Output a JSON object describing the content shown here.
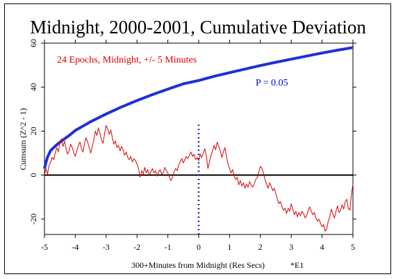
{
  "chart_data": {
    "type": "line",
    "title": "Midnight, 2000-2001, Cumulative Deviation",
    "xlabel": "300+Minutes from Midnight (Res Secs)",
    "ylabel": "Cumsum (Z^2 - 1)",
    "footnote": "*E1",
    "legend_text": "24 Epochs, Midnight, +/- 5 Minutes",
    "p_label": "P = 0.05",
    "xlim": [
      -5,
      5
    ],
    "ylim": [
      -27,
      60
    ],
    "x_ticks": [
      -5,
      -4,
      -3,
      -2,
      -1,
      0,
      1,
      2,
      3,
      4,
      5
    ],
    "y_ticks": [
      -20,
      0,
      20,
      40,
      60
    ],
    "grid": false,
    "colors": {
      "cumsum": "#dd0000",
      "envelope": "#1f2fd6",
      "midnight_marker": "#1f2fd6",
      "zero_line": "#000000",
      "legend_text": "#dd0000",
      "p_label": "#0000cc"
    },
    "series": [
      {
        "name": "24 Epochs, Midnight, +/- 5 Minutes",
        "x": [
          -5.0,
          -4.95,
          -4.9,
          -4.85,
          -4.8,
          -4.75,
          -4.7,
          -4.65,
          -4.6,
          -4.55,
          -4.5,
          -4.45,
          -4.4,
          -4.35,
          -4.3,
          -4.25,
          -4.2,
          -4.15,
          -4.1,
          -4.05,
          -4.0,
          -3.95,
          -3.9,
          -3.85,
          -3.8,
          -3.75,
          -3.7,
          -3.65,
          -3.6,
          -3.55,
          -3.5,
          -3.45,
          -3.4,
          -3.35,
          -3.3,
          -3.25,
          -3.2,
          -3.15,
          -3.1,
          -3.05,
          -3.0,
          -2.95,
          -2.9,
          -2.85,
          -2.8,
          -2.75,
          -2.7,
          -2.65,
          -2.6,
          -2.55,
          -2.5,
          -2.45,
          -2.4,
          -2.35,
          -2.3,
          -2.25,
          -2.2,
          -2.15,
          -2.1,
          -2.05,
          -2.0,
          -1.95,
          -1.9,
          -1.85,
          -1.8,
          -1.75,
          -1.7,
          -1.65,
          -1.6,
          -1.55,
          -1.5,
          -1.45,
          -1.4,
          -1.35,
          -1.3,
          -1.25,
          -1.2,
          -1.15,
          -1.1,
          -1.05,
          -1.0,
          -0.95,
          -0.9,
          -0.85,
          -0.8,
          -0.75,
          -0.7,
          -0.65,
          -0.6,
          -0.55,
          -0.5,
          -0.45,
          -0.4,
          -0.35,
          -0.3,
          -0.25,
          -0.2,
          -0.15,
          -0.1,
          -0.05,
          0.0,
          0.05,
          0.1,
          0.15,
          0.2,
          0.25,
          0.3,
          0.35,
          0.4,
          0.45,
          0.5,
          0.55,
          0.6,
          0.65,
          0.7,
          0.75,
          0.8,
          0.85,
          0.9,
          0.95,
          1.0,
          1.05,
          1.1,
          1.15,
          1.2,
          1.25,
          1.3,
          1.35,
          1.4,
          1.45,
          1.5,
          1.55,
          1.6,
          1.65,
          1.7,
          1.75,
          1.8,
          1.85,
          1.9,
          1.95,
          2.0,
          2.05,
          2.1,
          2.15,
          2.2,
          2.25,
          2.3,
          2.35,
          2.4,
          2.45,
          2.5,
          2.55,
          2.6,
          2.65,
          2.7,
          2.75,
          2.8,
          2.85,
          2.9,
          2.95,
          3.0,
          3.05,
          3.1,
          3.15,
          3.2,
          3.25,
          3.3,
          3.35,
          3.4,
          3.45,
          3.5,
          3.55,
          3.6,
          3.65,
          3.7,
          3.75,
          3.8,
          3.85,
          3.9,
          3.95,
          4.0,
          4.05,
          4.1,
          4.15,
          4.2,
          4.25,
          4.3,
          4.35,
          4.4,
          4.45,
          4.5,
          4.55,
          4.6,
          4.65,
          4.7,
          4.75,
          4.8,
          4.85,
          4.9,
          4.95,
          5.0
        ],
        "y": [
          0.0,
          3.0,
          0.5,
          4.5,
          6.0,
          8.0,
          7.0,
          10.0,
          12.5,
          10.5,
          15.0,
          16.5,
          13.0,
          15.5,
          12.0,
          9.5,
          11.0,
          14.0,
          12.5,
          10.0,
          8.5,
          11.0,
          13.5,
          15.0,
          12.0,
          10.5,
          14.5,
          17.0,
          15.0,
          12.5,
          10.0,
          13.0,
          16.0,
          20.0,
          18.0,
          21.5,
          19.0,
          16.0,
          14.5,
          19.0,
          22.5,
          21.0,
          18.5,
          20.5,
          17.0,
          14.0,
          15.5,
          12.5,
          13.5,
          11.0,
          13.0,
          11.5,
          9.0,
          10.5,
          8.0,
          7.0,
          8.5,
          6.0,
          7.5,
          6.5,
          5.0,
          3.0,
          -1.0,
          2.0,
          0.5,
          3.5,
          1.0,
          2.5,
          0.0,
          1.5,
          3.0,
          1.0,
          2.0,
          -0.5,
          1.5,
          2.5,
          0.5,
          1.0,
          3.5,
          2.0,
          1.0,
          -1.0,
          -2.5,
          -1.0,
          1.5,
          3.0,
          2.0,
          4.5,
          6.0,
          7.5,
          5.5,
          7.0,
          8.5,
          7.5,
          9.0,
          10.5,
          8.5,
          9.5,
          7.0,
          8.0,
          6.5,
          9.5,
          8.0,
          10.0,
          12.0,
          8.5,
          3.0,
          6.0,
          9.0,
          11.0,
          13.5,
          11.5,
          15.0,
          13.0,
          11.0,
          8.0,
          10.5,
          12.5,
          8.5,
          5.0,
          3.0,
          1.0,
          2.5,
          -0.5,
          -2.0,
          -1.0,
          -4.5,
          -2.5,
          -5.0,
          -3.5,
          -6.0,
          -4.0,
          -5.5,
          -3.0,
          -4.5,
          -5.5,
          -4.0,
          -2.0,
          -1.0,
          1.5,
          4.0,
          3.0,
          1.0,
          -2.0,
          -4.0,
          -6.0,
          -3.5,
          -5.0,
          -7.0,
          -6.0,
          -8.5,
          -11.0,
          -13.0,
          -12.0,
          -14.5,
          -16.0,
          -15.0,
          -17.5,
          -15.0,
          -16.5,
          -13.0,
          -15.5,
          -18.0,
          -16.5,
          -19.0,
          -17.0,
          -18.5,
          -16.5,
          -17.5,
          -19.5,
          -18.5,
          -16.0,
          -14.5,
          -16.5,
          -18.0,
          -17.0,
          -19.5,
          -21.0,
          -20.0,
          -22.0,
          -23.5,
          -22.5,
          -25.5,
          -24.5,
          -21.0,
          -19.0,
          -15.5,
          -17.5,
          -19.5,
          -16.5,
          -14.0,
          -17.0,
          -16.0,
          -13.5,
          -15.5,
          -12.0,
          -11.0,
          -15.0,
          -16.0,
          -9.0,
          -4.0
        ]
      },
      {
        "name": "P = 0.05",
        "x": [
          -5.0,
          -4.95,
          -4.9,
          -4.8,
          -4.6,
          -4.4,
          -4.2,
          -4.0,
          -3.5,
          -3.0,
          -2.5,
          -2.0,
          -1.5,
          -1.0,
          -0.5,
          0.0,
          0.5,
          1.0,
          1.5,
          2.0,
          2.5,
          3.0,
          3.5,
          4.0,
          4.5,
          5.0
        ],
        "y": [
          3.0,
          5.8,
          8.2,
          11.2,
          13.8,
          16.0,
          18.0,
          20.3,
          24.3,
          27.8,
          31.0,
          33.9,
          36.6,
          39.1,
          41.5,
          43.0,
          44.9,
          46.6,
          48.2,
          49.8,
          51.3,
          52.7,
          54.1,
          55.5,
          56.8,
          58.0
        ]
      }
    ]
  }
}
